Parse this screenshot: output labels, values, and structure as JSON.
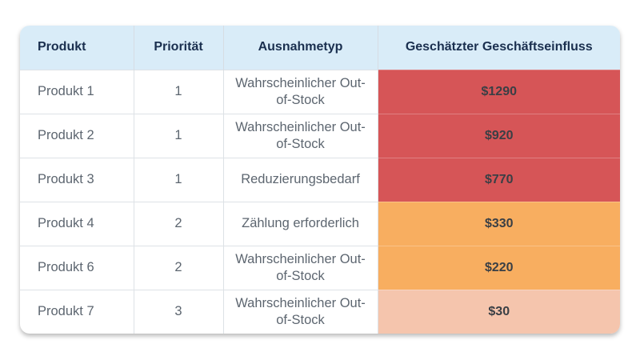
{
  "colors": {
    "header_bg": "#d9ecf8",
    "high": "#d65557",
    "medium": "#f8ae60",
    "low": "#f5c5ad"
  },
  "table": {
    "headers": [
      "Produkt",
      "Priorität",
      "Ausnahmetyp",
      "Geschätzter Geschäftseinfluss"
    ],
    "rows": [
      {
        "product": "Produkt 1",
        "priority": "1",
        "type": "Wahrscheinlicher Out-of-Stock",
        "impact": "$1290",
        "level": "high"
      },
      {
        "product": "Produkt 2",
        "priority": "1",
        "type": "Wahrscheinlicher Out-of-Stock",
        "impact": "$920",
        "level": "high"
      },
      {
        "product": "Produkt 3",
        "priority": "1",
        "type": "Reduzierungsbedarf",
        "impact": "$770",
        "level": "high"
      },
      {
        "product": "Produkt 4",
        "priority": "2",
        "type": "Zählung erforderlich",
        "impact": "$330",
        "level": "medium"
      },
      {
        "product": "Produkt 6",
        "priority": "2",
        "type": "Wahrscheinlicher Out-of-Stock",
        "impact": "$220",
        "level": "medium"
      },
      {
        "product": "Produkt 7",
        "priority": "3",
        "type": "Wahrscheinlicher Out-of-Stock",
        "impact": "$30",
        "level": "low"
      }
    ]
  }
}
